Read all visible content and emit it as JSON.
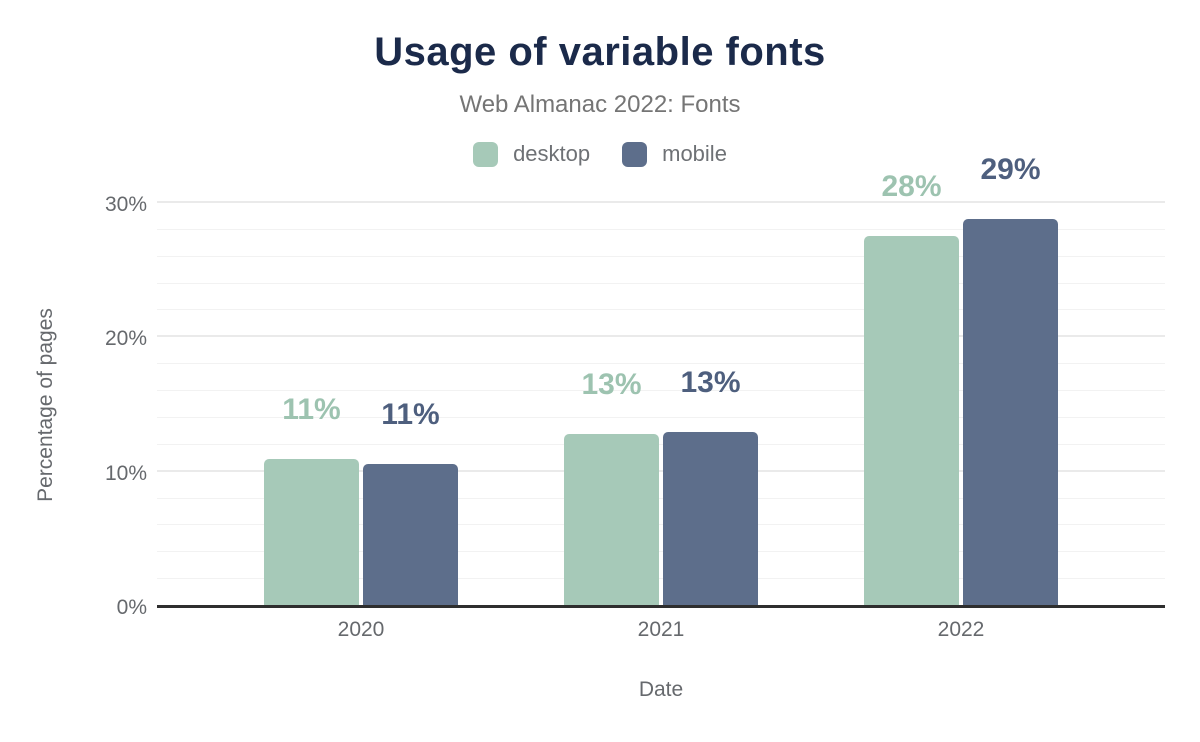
{
  "header": {
    "title": "Usage of variable fonts",
    "subtitle": "Web Almanac 2022: Fonts"
  },
  "legend": [
    {
      "label": "desktop",
      "color": "#a6c9b8"
    },
    {
      "label": "mobile",
      "color": "#5d6e8b"
    }
  ],
  "axes": {
    "ylabel": "Percentage of pages",
    "xlabel": "Date",
    "ytick_labels": [
      "0%",
      "10%",
      "20%",
      "30%"
    ],
    "xtick_labels": [
      "2020",
      "2021",
      "2022"
    ]
  },
  "colors": {
    "title": "#1b2a4a",
    "subtitle": "#757575",
    "axis_text": "#66696d",
    "grid_minor": "#f2f2f2",
    "grid_major": "#eaeaea",
    "axis_line": "#2e2e2e",
    "background": "#ffffff"
  },
  "chart_data": {
    "type": "bar",
    "title": "Usage of variable fonts",
    "subtitle": "Web Almanac 2022: Fonts",
    "categories": [
      "2020",
      "2021",
      "2022"
    ],
    "series": [
      {
        "name": "desktop",
        "color": "#a6c9b8",
        "label_color": "#9dc3b0",
        "values": [
          10.9,
          12.7,
          27.5
        ],
        "labels": [
          "11%",
          "13%",
          "28%"
        ]
      },
      {
        "name": "mobile",
        "color": "#5d6e8b",
        "label_color": "#4e5f7e",
        "values": [
          10.5,
          12.9,
          28.7
        ],
        "labels": [
          "11%",
          "13%",
          "29%"
        ]
      }
    ],
    "xlabel": "Date",
    "ylabel": "Percentage of pages",
    "ylim": [
      0,
      30
    ],
    "yticks": [
      0,
      10,
      20,
      30
    ],
    "ytick_labels": [
      "0%",
      "10%",
      "20%",
      "30%"
    ],
    "grid_step": 2,
    "grid": true,
    "legend_position": "top"
  }
}
